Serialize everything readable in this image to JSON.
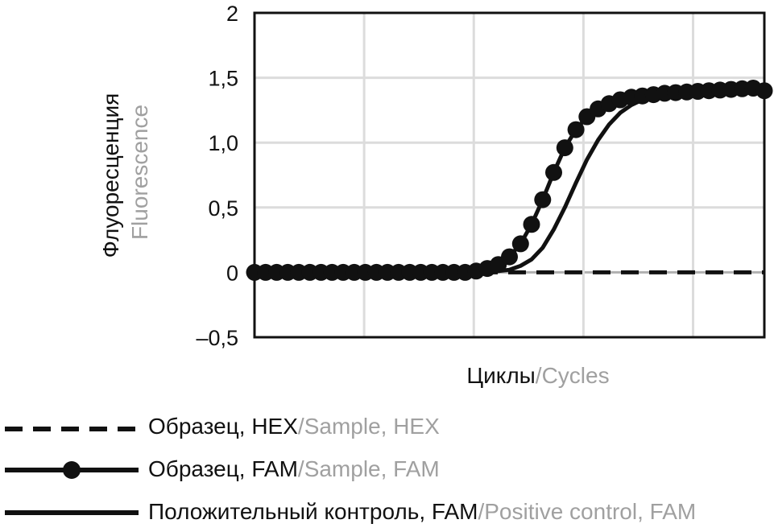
{
  "chart_data": {
    "type": "line",
    "xlabel_ru": "Циклы",
    "xlabel_en": "Cycles",
    "ylabel_ru": "Флуоресценция",
    "ylabel_en": "Fluorescence",
    "y_ticks": [
      "2",
      "1,5",
      "1,0",
      "0,5",
      "0",
      "–0,5"
    ],
    "y_tick_values": [
      2,
      1.5,
      1.0,
      0.5,
      0,
      -0.5
    ],
    "ylim": [
      -0.5,
      2
    ],
    "xlim": [
      0,
      46
    ],
    "grid": true,
    "series": [
      {
        "name_ru": "Образец, HEX",
        "name_en": "Sample, HEX",
        "style": "dashed",
        "x": [
          0,
          46
        ],
        "values": [
          0,
          0
        ]
      },
      {
        "name_ru": "Образец, FAM",
        "name_en": "Sample, FAM",
        "style": "line-markers",
        "x": [
          0,
          1,
          2,
          3,
          4,
          5,
          6,
          7,
          8,
          9,
          10,
          11,
          12,
          13,
          14,
          15,
          16,
          17,
          18,
          19,
          20,
          21,
          22,
          23,
          24,
          25,
          26,
          27,
          28,
          29,
          30,
          31,
          32,
          33,
          34,
          35,
          36,
          37,
          38,
          39,
          40,
          41,
          42,
          43,
          44,
          45,
          46
        ],
        "values": [
          0,
          0,
          0,
          0,
          0,
          0,
          0,
          0,
          0,
          0,
          0,
          0,
          0,
          0,
          0,
          0,
          0,
          0,
          0,
          0,
          0.01,
          0.03,
          0.06,
          0.12,
          0.22,
          0.37,
          0.56,
          0.77,
          0.96,
          1.1,
          1.2,
          1.26,
          1.3,
          1.33,
          1.35,
          1.36,
          1.37,
          1.38,
          1.385,
          1.39,
          1.395,
          1.4,
          1.405,
          1.41,
          1.415,
          1.42,
          1.4
        ]
      },
      {
        "name_ru": "Положительный контроль, FAM",
        "name_en": "Positive control, FAM",
        "style": "solid",
        "x": [
          0,
          4,
          8,
          12,
          16,
          18,
          20,
          21,
          22,
          23,
          24,
          25,
          26,
          27,
          28,
          29,
          30,
          31,
          32,
          33,
          34,
          35,
          36,
          38,
          40,
          42,
          44,
          46
        ],
        "values": [
          0,
          0,
          0,
          0,
          0,
          0,
          0,
          0,
          0.01,
          0.02,
          0.05,
          0.1,
          0.19,
          0.33,
          0.5,
          0.69,
          0.87,
          1.02,
          1.14,
          1.23,
          1.29,
          1.33,
          1.36,
          1.39,
          1.41,
          1.42,
          1.43,
          1.44
        ]
      }
    ]
  }
}
